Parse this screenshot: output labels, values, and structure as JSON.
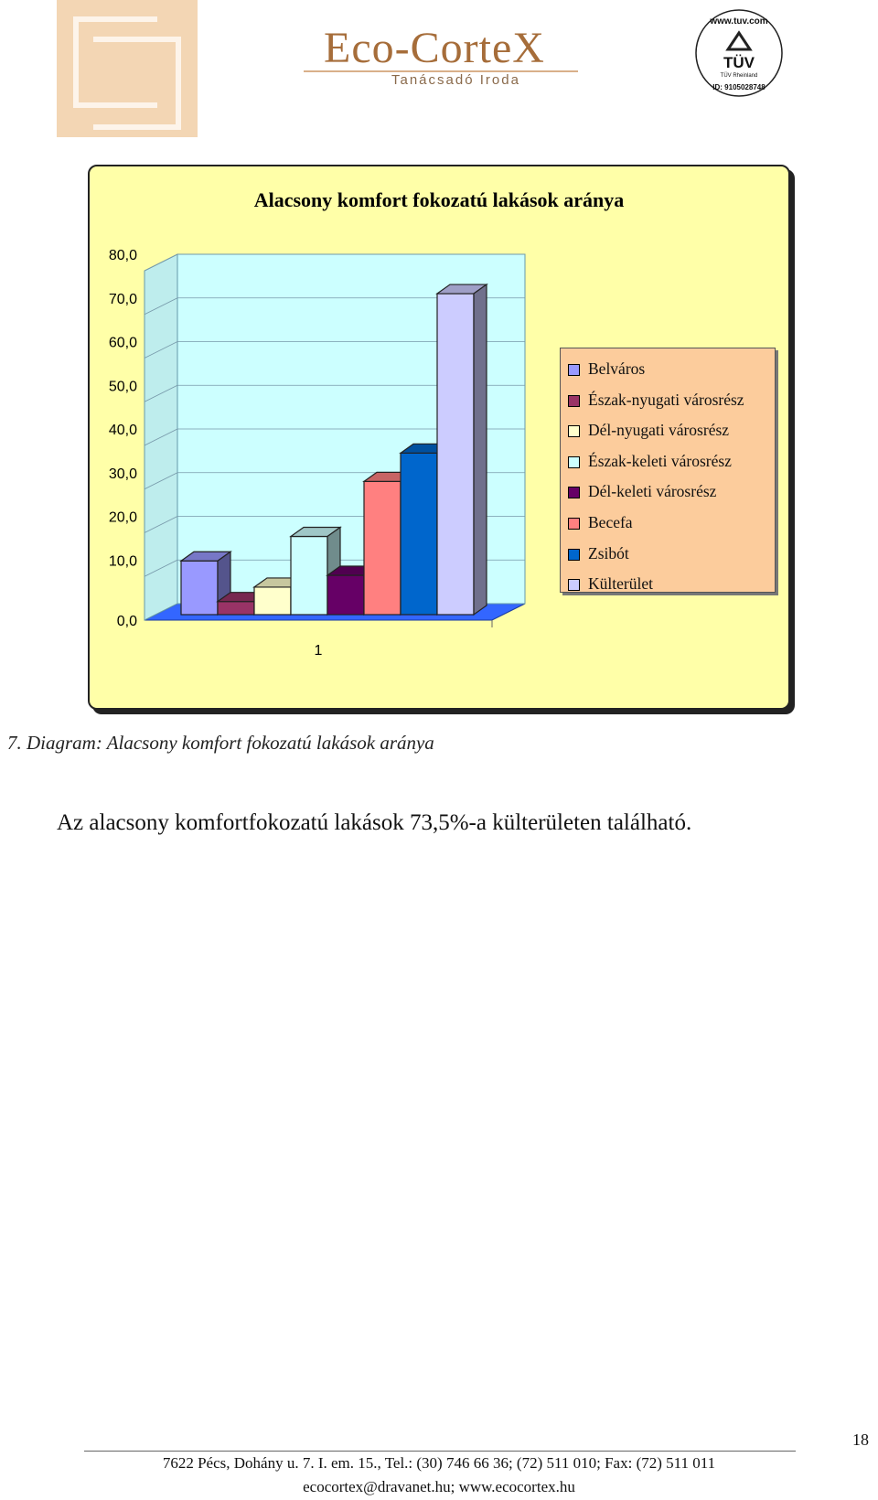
{
  "header": {
    "brand_name": "Eco-CorteX",
    "brand_sub": "Tanácsadó Iroda",
    "tuv_top": "www.tuv.com",
    "tuv_mark": "TÜV",
    "tuv_sub": "TÜV Rheinland",
    "tuv_id": "ID: 9105028748"
  },
  "chart_data": {
    "type": "bar",
    "title": "Alacsony komfort fokozatú lakások aránya",
    "categories": [
      "1"
    ],
    "series": [
      {
        "name": "Belváros",
        "values": [
          12.3
        ],
        "color": "#9999ff"
      },
      {
        "name": "Észak-nyugati városrész",
        "values": [
          3.0
        ],
        "color": "#993366"
      },
      {
        "name": "Dél-nyugati városrész",
        "values": [
          6.3
        ],
        "color": "#ffffcc"
      },
      {
        "name": "Észak-keleti városrész",
        "values": [
          17.9
        ],
        "color": "#ccffff"
      },
      {
        "name": "Dél-keleti városrész",
        "values": [
          9.0
        ],
        "color": "#660066"
      },
      {
        "name": "Becefa",
        "values": [
          30.5
        ],
        "color": "#ff8080"
      },
      {
        "name": "Zsibót",
        "values": [
          37.0
        ],
        "color": "#0066cc"
      },
      {
        "name": "Külterület",
        "values": [
          73.5
        ],
        "color": "#ccccff"
      }
    ],
    "ylim": [
      0,
      80
    ],
    "yticks": [
      "0,0",
      "10,0",
      "20,0",
      "30,0",
      "40,0",
      "50,0",
      "60,0",
      "70,0",
      "80,0"
    ],
    "ytick_values": [
      0,
      10,
      20,
      30,
      40,
      50,
      60,
      70,
      80
    ],
    "grid": true,
    "legend_position": "right",
    "background": "#ffffa8",
    "wall_color": "#ccffff",
    "floor_color": "#3366ff"
  },
  "caption": "7. Diagram: Alacsony komfort fokozatú lakások aránya",
  "body_text": "Az alacsony komfortfokozatú lakások 73,5%-a külterületen található.",
  "footer": {
    "page_number": "18",
    "line1": "7622 Pécs, Dohány u. 7. I. em. 15., Tel.: (30) 746 66 36; (72) 511 010; Fax: (72) 511 011",
    "line2": "ecocortex@dravanet.hu; www.ecocortex.hu"
  }
}
